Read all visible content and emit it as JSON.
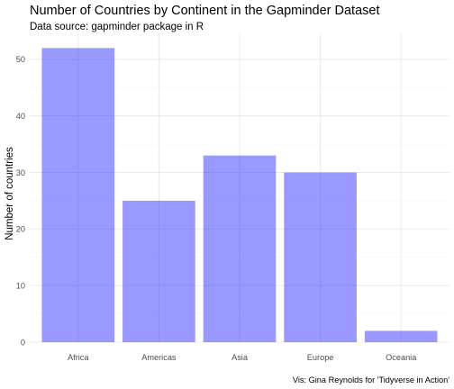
{
  "chart_data": {
    "type": "bar",
    "title": "Number of Countries by Continent in the Gapminder Dataset",
    "subtitle": "Data source: gapminder package in R",
    "xlabel": "",
    "ylabel": "Number of countries",
    "caption": "Vis: Gina Reynolds for 'Tidyverse in Action'",
    "categories": [
      "Africa",
      "Americas",
      "Asia",
      "Europe",
      "Oceania"
    ],
    "values": [
      52,
      25,
      33,
      30,
      2
    ],
    "ylim": [
      0,
      54.6
    ],
    "yticks": [
      0,
      10,
      20,
      30,
      40,
      50
    ],
    "bar_color": "#0000ff",
    "bar_opacity": 0.4,
    "grid": true,
    "legend": "none"
  }
}
